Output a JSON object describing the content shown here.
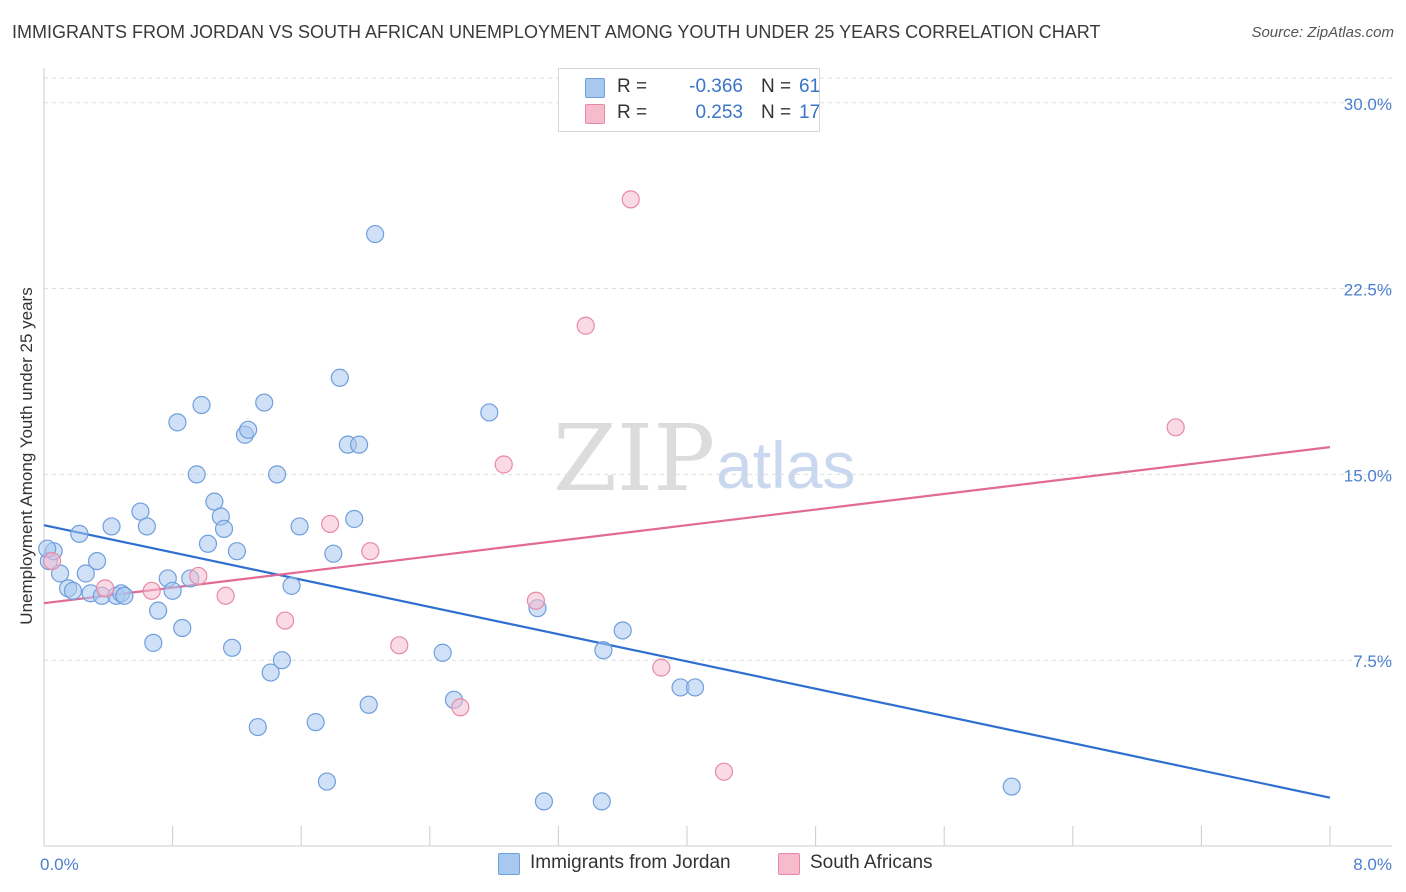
{
  "title": "IMMIGRANTS FROM JORDAN VS SOUTH AFRICAN UNEMPLOYMENT AMONG YOUTH UNDER 25 YEARS CORRELATION CHART",
  "source": "Source: ZipAtlas.com",
  "watermark": {
    "zip": "ZIP",
    "atlas": "atlas"
  },
  "colors": {
    "blue_fill": "#a9c8f0",
    "blue_stroke": "#6f9fdc",
    "blue_line": "#2f6fcf",
    "pink_fill": "#f6bccd",
    "pink_stroke": "#e88aa6",
    "pink_line": "#e26a96",
    "grid": "#dddddd",
    "tick_text": "#4a7fcf"
  },
  "legend": {
    "rows": [
      {
        "r_label": "R =",
        "r_value": "-0.366",
        "n_label": "N =",
        "n_value": "61",
        "color": "blue"
      },
      {
        "r_label": "R =",
        "r_value": "0.253",
        "n_label": "N =",
        "n_value": "17",
        "color": "pink"
      }
    ]
  },
  "bottom_legend": [
    {
      "label": "Immigrants from Jordan",
      "color": "blue"
    },
    {
      "label": "South Africans",
      "color": "pink"
    }
  ],
  "chart_data": {
    "type": "scatter",
    "title": "IMMIGRANTS FROM JORDAN VS SOUTH AFRICAN UNEMPLOYMENT AMONG YOUTH UNDER 25 YEARS CORRELATION CHART",
    "xlabel": "",
    "ylabel": "Unemployment Among Youth under 25 years",
    "xlim": [
      0,
      8.0
    ],
    "ylim": [
      0,
      31.0
    ],
    "x_tick_labels": [
      "0.0%",
      "8.0%"
    ],
    "y_ticks": [
      7.5,
      15.0,
      22.5,
      30.0
    ],
    "y_tick_labels": [
      "7.5%",
      "15.0%",
      "22.5%",
      "30.0%"
    ],
    "grid": "horizontal dashed",
    "legend_placement": "top-center",
    "series": [
      {
        "name": "Immigrants from Jordan",
        "color": "blue",
        "points": [
          [
            0.03,
            11.5
          ],
          [
            0.06,
            11.9
          ],
          [
            0.1,
            11.0
          ],
          [
            0.15,
            10.4
          ],
          [
            0.18,
            10.3
          ],
          [
            0.22,
            12.6
          ],
          [
            0.26,
            11.0
          ],
          [
            0.29,
            10.2
          ],
          [
            0.33,
            11.5
          ],
          [
            0.36,
            10.1
          ],
          [
            0.42,
            12.9
          ],
          [
            0.45,
            10.1
          ],
          [
            0.48,
            10.2
          ],
          [
            0.5,
            10.1
          ],
          [
            0.6,
            13.5
          ],
          [
            0.64,
            12.9
          ],
          [
            0.68,
            8.2
          ],
          [
            0.71,
            9.5
          ],
          [
            0.77,
            10.8
          ],
          [
            0.8,
            10.3
          ],
          [
            0.83,
            17.1
          ],
          [
            0.86,
            8.8
          ],
          [
            0.91,
            10.8
          ],
          [
            0.95,
            15.0
          ],
          [
            0.98,
            17.8
          ],
          [
            1.02,
            12.2
          ],
          [
            1.06,
            13.9
          ],
          [
            1.1,
            13.3
          ],
          [
            1.12,
            12.8
          ],
          [
            1.17,
            8.0
          ],
          [
            1.2,
            11.9
          ],
          [
            1.25,
            16.6
          ],
          [
            1.27,
            16.8
          ],
          [
            1.33,
            4.8
          ],
          [
            1.37,
            17.9
          ],
          [
            1.41,
            7.0
          ],
          [
            1.45,
            15.0
          ],
          [
            1.48,
            7.5
          ],
          [
            1.54,
            10.5
          ],
          [
            1.59,
            12.9
          ],
          [
            1.69,
            5.0
          ],
          [
            1.76,
            2.6
          ],
          [
            1.8,
            11.8
          ],
          [
            1.84,
            18.9
          ],
          [
            1.89,
            16.2
          ],
          [
            1.93,
            13.2
          ],
          [
            1.96,
            16.2
          ],
          [
            2.02,
            5.7
          ],
          [
            2.06,
            24.7
          ],
          [
            2.48,
            7.8
          ],
          [
            2.55,
            5.9
          ],
          [
            2.77,
            17.5
          ],
          [
            3.07,
            9.6
          ],
          [
            3.11,
            1.8
          ],
          [
            3.47,
            1.8
          ],
          [
            3.48,
            7.9
          ],
          [
            3.6,
            8.7
          ],
          [
            3.96,
            6.4
          ],
          [
            4.05,
            6.4
          ],
          [
            6.02,
            2.4
          ],
          [
            0.02,
            12.0
          ]
        ]
      },
      {
        "name": "South Africans",
        "color": "pink",
        "points": [
          [
            0.05,
            11.5
          ],
          [
            0.38,
            10.4
          ],
          [
            0.67,
            10.3
          ],
          [
            0.96,
            10.9
          ],
          [
            1.13,
            10.1
          ],
          [
            1.5,
            9.1
          ],
          [
            1.78,
            13.0
          ],
          [
            2.03,
            11.9
          ],
          [
            2.21,
            8.1
          ],
          [
            2.59,
            5.6
          ],
          [
            2.86,
            15.4
          ],
          [
            3.06,
            9.9
          ],
          [
            3.37,
            21.0
          ],
          [
            3.65,
            26.1
          ],
          [
            3.84,
            7.2
          ],
          [
            4.23,
            3.0
          ],
          [
            7.04,
            16.9
          ]
        ]
      }
    ],
    "trend_lines": [
      {
        "series": "Immigrants from Jordan",
        "x": [
          0.0,
          8.0
        ],
        "y": [
          12.95,
          1.95
        ]
      },
      {
        "series": "South Africans",
        "x": [
          0.0,
          8.0
        ],
        "y": [
          9.8,
          16.1
        ]
      }
    ]
  }
}
